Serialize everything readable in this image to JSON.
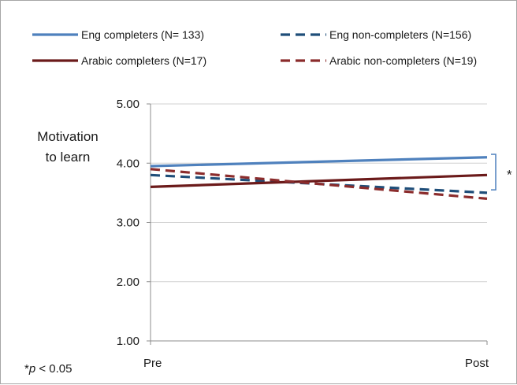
{
  "chart_data": {
    "type": "line",
    "categories": [
      "Pre",
      "Post"
    ],
    "ylabel": [
      "Motivation",
      "to learn"
    ],
    "ylim": [
      1,
      5
    ],
    "yticks": [
      "1.00",
      "2.00",
      "3.00",
      "4.00",
      "5.00"
    ],
    "grid": "horizontal",
    "legend_position": "top",
    "series": [
      {
        "name": "Eng completers (N= 133)",
        "values": [
          3.95,
          4.1
        ],
        "color": "#4f81bd",
        "dash": "solid"
      },
      {
        "name": "Eng non-completers (N=156)",
        "values": [
          3.8,
          3.5
        ],
        "color": "#1f4e79",
        "dash": "dashed"
      },
      {
        "name": "Arabic completers  (N=17)",
        "values": [
          3.6,
          3.8
        ],
        "color": "#6b1a1a",
        "dash": "solid"
      },
      {
        "name": "Arabic non-completers (N=19)",
        "values": [
          3.9,
          3.4
        ],
        "color": "#8b2c2c",
        "dash": "dashed"
      }
    ],
    "annotations": {
      "significance_mark": "*",
      "bracket_range": [
        3.55,
        4.15
      ],
      "bracket_color": "#4f81bd",
      "footnote_star": "*",
      "footnote_p": "p",
      "footnote_rest": " < 0.05"
    }
  }
}
